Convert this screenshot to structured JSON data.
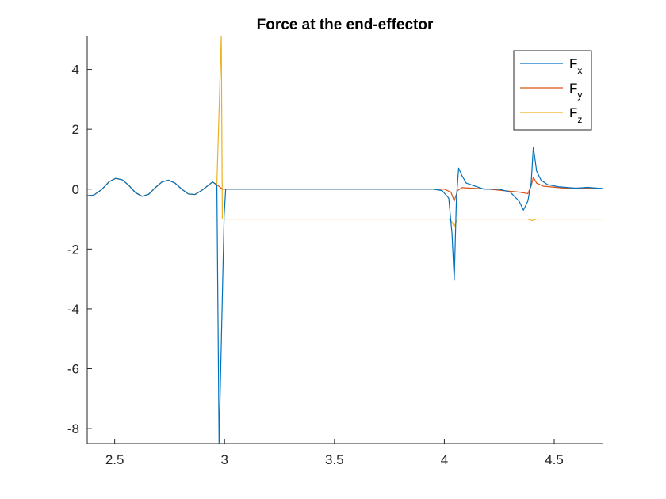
{
  "chart_data": {
    "type": "line",
    "title": "Force at the end-effector",
    "xlabel": "",
    "ylabel": "",
    "xlim": [
      2.375,
      4.72
    ],
    "ylim": [
      -8.5,
      5.1
    ],
    "grid": false,
    "legend_position": "top-right",
    "x_ticks": [
      2.5,
      3,
      3.5,
      4,
      4.5
    ],
    "x_tick_labels": [
      "2.5",
      "3",
      "3.5",
      "4",
      "4.5"
    ],
    "y_ticks": [
      4,
      2,
      0,
      -2,
      -4,
      -6,
      -8
    ],
    "y_tick_labels": [
      "4",
      "2",
      "0",
      "-2",
      "-4",
      "-6",
      "-8"
    ],
    "series": [
      {
        "name": "F",
        "subscript": "x",
        "color": "#0072BD",
        "points": [
          [
            2.375,
            -0.22
          ],
          [
            2.405,
            -0.2
          ],
          [
            2.44,
            -0.02
          ],
          [
            2.475,
            0.25
          ],
          [
            2.505,
            0.36
          ],
          [
            2.535,
            0.31
          ],
          [
            2.565,
            0.12
          ],
          [
            2.595,
            -0.12
          ],
          [
            2.625,
            -0.24
          ],
          [
            2.655,
            -0.17
          ],
          [
            2.685,
            0.05
          ],
          [
            2.715,
            0.24
          ],
          [
            2.745,
            0.3
          ],
          [
            2.775,
            0.2
          ],
          [
            2.805,
            0.0
          ],
          [
            2.835,
            -0.16
          ],
          [
            2.865,
            -0.18
          ],
          [
            2.895,
            -0.05
          ],
          [
            2.925,
            0.12
          ],
          [
            2.945,
            0.24
          ],
          [
            2.965,
            0.14
          ],
          [
            2.975,
            -8.5
          ],
          [
            2.998,
            -0.9
          ],
          [
            3.005,
            0.0
          ],
          [
            3.5,
            0.0
          ],
          [
            3.95,
            0.0
          ],
          [
            3.99,
            -0.05
          ],
          [
            4.02,
            -0.3
          ],
          [
            4.035,
            -1.5
          ],
          [
            4.045,
            -3.05
          ],
          [
            4.055,
            -0.3
          ],
          [
            4.065,
            0.7
          ],
          [
            4.08,
            0.45
          ],
          [
            4.1,
            0.2
          ],
          [
            4.14,
            0.1
          ],
          [
            4.18,
            0.0
          ],
          [
            4.25,
            0.0
          ],
          [
            4.3,
            -0.1
          ],
          [
            4.34,
            -0.4
          ],
          [
            4.36,
            -0.7
          ],
          [
            4.38,
            -0.4
          ],
          [
            4.395,
            0.2
          ],
          [
            4.405,
            1.4
          ],
          [
            4.42,
            0.6
          ],
          [
            4.44,
            0.3
          ],
          [
            4.47,
            0.15
          ],
          [
            4.52,
            0.08
          ],
          [
            4.6,
            0.03
          ],
          [
            4.65,
            0.06
          ],
          [
            4.72,
            0.02
          ]
        ]
      },
      {
        "name": "F",
        "subscript": "y",
        "color": "#D95319",
        "points": [
          [
            2.375,
            -0.22
          ],
          [
            2.405,
            -0.2
          ],
          [
            2.44,
            -0.02
          ],
          [
            2.475,
            0.25
          ],
          [
            2.505,
            0.36
          ],
          [
            2.535,
            0.31
          ],
          [
            2.565,
            0.12
          ],
          [
            2.595,
            -0.12
          ],
          [
            2.625,
            -0.24
          ],
          [
            2.655,
            -0.17
          ],
          [
            2.685,
            0.05
          ],
          [
            2.715,
            0.24
          ],
          [
            2.745,
            0.3
          ],
          [
            2.775,
            0.2
          ],
          [
            2.805,
            0.0
          ],
          [
            2.835,
            -0.16
          ],
          [
            2.865,
            -0.18
          ],
          [
            2.895,
            -0.05
          ],
          [
            2.925,
            0.12
          ],
          [
            2.945,
            0.24
          ],
          [
            2.97,
            0.12
          ],
          [
            2.99,
            0.0
          ],
          [
            3.5,
            0.0
          ],
          [
            4.0,
            0.0
          ],
          [
            4.03,
            -0.1
          ],
          [
            4.045,
            -0.4
          ],
          [
            4.06,
            -0.05
          ],
          [
            4.08,
            0.05
          ],
          [
            4.2,
            0.0
          ],
          [
            4.34,
            -0.1
          ],
          [
            4.38,
            -0.15
          ],
          [
            4.395,
            0.1
          ],
          [
            4.405,
            0.4
          ],
          [
            4.42,
            0.2
          ],
          [
            4.45,
            0.1
          ],
          [
            4.55,
            0.03
          ],
          [
            4.65,
            0.04
          ],
          [
            4.72,
            0.02
          ]
        ]
      },
      {
        "name": "F",
        "subscript": "z",
        "color": "#EDB120",
        "points": [
          [
            2.375,
            -0.22
          ],
          [
            2.405,
            -0.2
          ],
          [
            2.44,
            -0.02
          ],
          [
            2.475,
            0.25
          ],
          [
            2.505,
            0.36
          ],
          [
            2.535,
            0.31
          ],
          [
            2.565,
            0.12
          ],
          [
            2.595,
            -0.12
          ],
          [
            2.625,
            -0.24
          ],
          [
            2.655,
            -0.17
          ],
          [
            2.685,
            0.05
          ],
          [
            2.715,
            0.24
          ],
          [
            2.745,
            0.3
          ],
          [
            2.775,
            0.2
          ],
          [
            2.805,
            0.0
          ],
          [
            2.835,
            -0.16
          ],
          [
            2.865,
            -0.18
          ],
          [
            2.895,
            -0.05
          ],
          [
            2.925,
            0.12
          ],
          [
            2.945,
            0.24
          ],
          [
            2.965,
            0.14
          ],
          [
            2.985,
            5.1
          ],
          [
            2.99,
            -1.0
          ],
          [
            3.5,
            -1.0
          ],
          [
            4.02,
            -1.0
          ],
          [
            4.035,
            -1.1
          ],
          [
            4.045,
            -1.25
          ],
          [
            4.06,
            -1.0
          ],
          [
            4.3,
            -1.0
          ],
          [
            4.38,
            -1.0
          ],
          [
            4.4,
            -1.05
          ],
          [
            4.42,
            -1.0
          ],
          [
            4.72,
            -1.0
          ]
        ]
      }
    ]
  }
}
